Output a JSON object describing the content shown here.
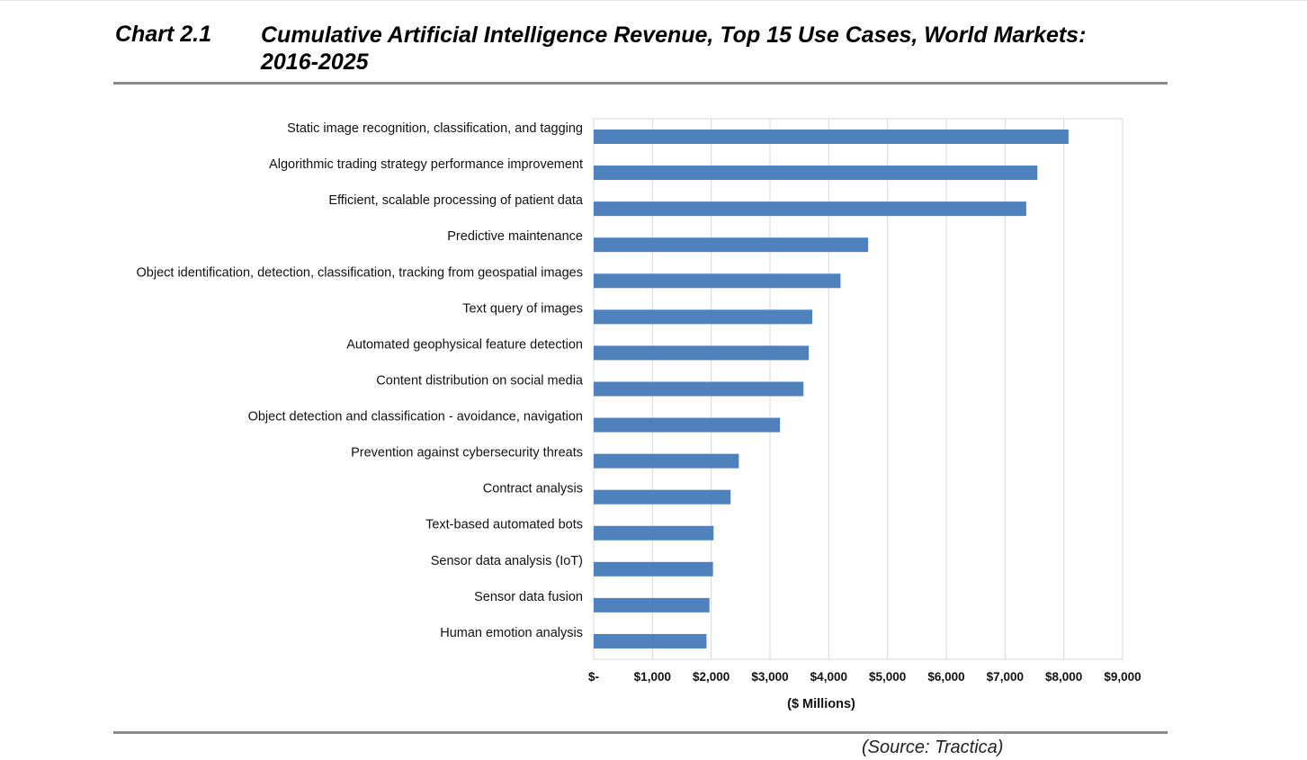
{
  "header": {
    "chart_number": "Chart 2.1",
    "title": "Cumulative Artificial Intelligence Revenue, Top 15 Use Cases, World Markets: 2016-2025"
  },
  "source": "(Source: Tractica)",
  "colors": {
    "bar": "#4f81bd",
    "grid": "#d9d9d9",
    "rule": "#8c8c8c"
  },
  "chart_data": {
    "type": "bar",
    "orientation": "horizontal",
    "title": "Cumulative Artificial Intelligence Revenue, Top 15 Use Cases, World Markets: 2016-2025",
    "xlabel": "($ Millions)",
    "ylabel": "",
    "xlim": [
      0,
      9000
    ],
    "x_ticks": [
      0,
      1000,
      2000,
      3000,
      4000,
      5000,
      6000,
      7000,
      8000,
      9000
    ],
    "x_tick_labels": [
      "$-",
      "$1,000",
      "$2,000",
      "$3,000",
      "$4,000",
      "$5,000",
      "$6,000",
      "$7,000",
      "$8,000",
      "$9,000"
    ],
    "grid": true,
    "legend": "none",
    "categories": [
      "Static image recognition, classification, and tagging",
      "Algorithmic trading strategy performance improvement",
      "Efficient, scalable processing of patient data",
      "Predictive maintenance",
      "Object identification, detection, classification, tracking from geospatial images",
      "Text query of images",
      "Automated geophysical feature detection",
      "Content distribution on social media",
      "Object detection and classification - avoidance, navigation",
      "Prevention against cybersecurity threats",
      "Contract analysis",
      "Text-based automated bots",
      "Sensor data analysis (IoT)",
      "Sensor data fusion",
      "Human emotion analysis"
    ],
    "values": [
      8080,
      7550,
      7360,
      4670,
      4200,
      3720,
      3660,
      3570,
      3170,
      2470,
      2330,
      2040,
      2030,
      1970,
      1920
    ]
  }
}
